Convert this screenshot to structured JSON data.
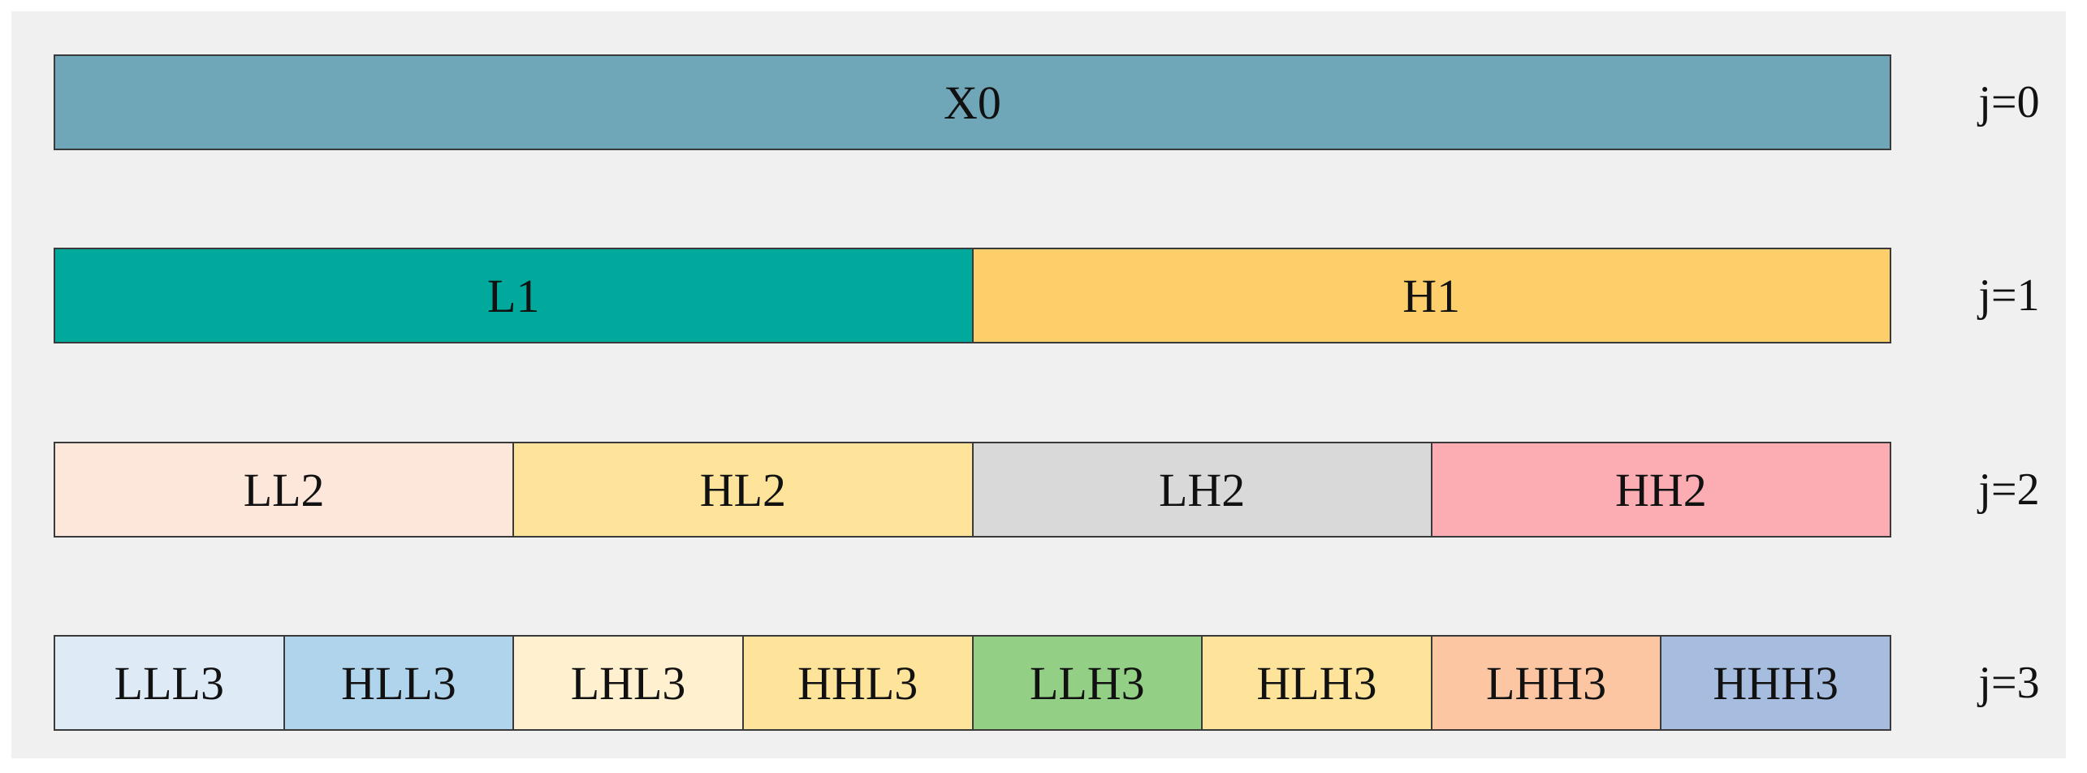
{
  "levels": [
    {
      "label": "j=0",
      "blocks": [
        {
          "text": "X0",
          "color": "#6fa6b8"
        }
      ]
    },
    {
      "label": "j=1",
      "blocks": [
        {
          "text": "L1",
          "color": "#00a99b"
        },
        {
          "text": "H1",
          "color": "#fdcf6b"
        }
      ]
    },
    {
      "label": "j=2",
      "blocks": [
        {
          "text": "LL2",
          "color": "#fde6da"
        },
        {
          "text": "HL2",
          "color": "#fde49a"
        },
        {
          "text": "LH2",
          "color": "#d9d9d9"
        },
        {
          "text": "HH2",
          "color": "#fbadb3"
        }
      ]
    },
    {
      "label": "j=3",
      "blocks": [
        {
          "text": "LLL3",
          "color": "#deebf7"
        },
        {
          "text": "HLL3",
          "color": "#b1d4ed"
        },
        {
          "text": "LHL3",
          "color": "#fff1d0"
        },
        {
          "text": "HHL3",
          "color": "#fde49a"
        },
        {
          "text": "LLH3",
          "color": "#94cf86"
        },
        {
          "text": "HLH3",
          "color": "#fde49a"
        },
        {
          "text": "LHH3",
          "color": "#fcc6a3"
        },
        {
          "text": "HHH3",
          "color": "#a6bddf"
        }
      ]
    }
  ]
}
